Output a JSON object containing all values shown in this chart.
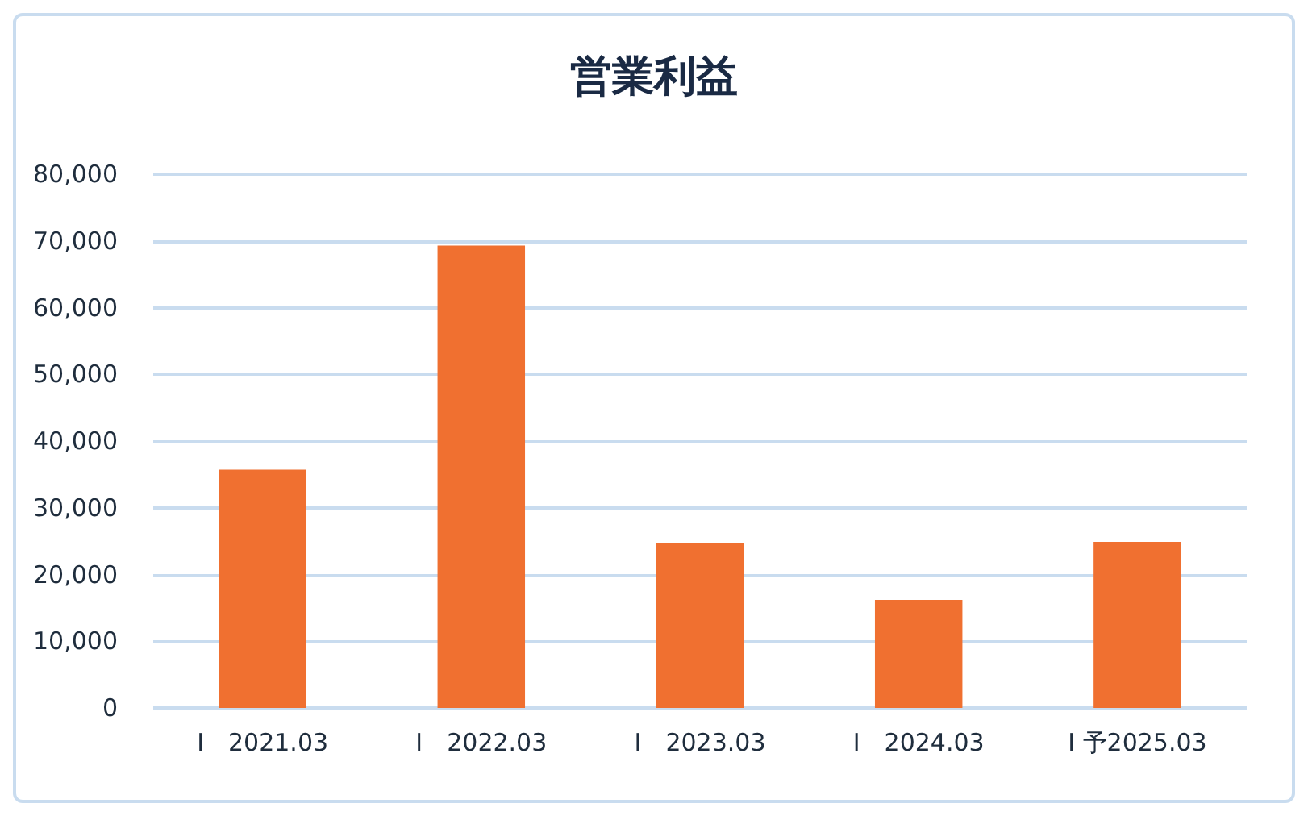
{
  "chart_data": {
    "type": "bar",
    "title": "営業利益",
    "categories": [
      "I　2021.03",
      "I　2022.03",
      "I　2023.03",
      "I　2024.03",
      "I 予2025.03"
    ],
    "values": [
      35700,
      69300,
      24700,
      16200,
      24900
    ],
    "color": "#f07030",
    "ylim": [
      0,
      80000
    ],
    "yticks": [
      0,
      {
        "value": 10000,
        "label": "10,000"
      },
      {
        "value": 20000,
        "label": "20,000"
      },
      {
        "value": 30000,
        "label": "30,000"
      },
      {
        "value": 40000,
        "label": "40,000"
      },
      {
        "value": 50000,
        "label": "50,000"
      },
      {
        "value": 60000,
        "label": "60,000"
      },
      {
        "value": 70000,
        "label": "70,000"
      },
      {
        "value": 80000,
        "label": "80,000"
      }
    ],
    "grid": "y"
  }
}
